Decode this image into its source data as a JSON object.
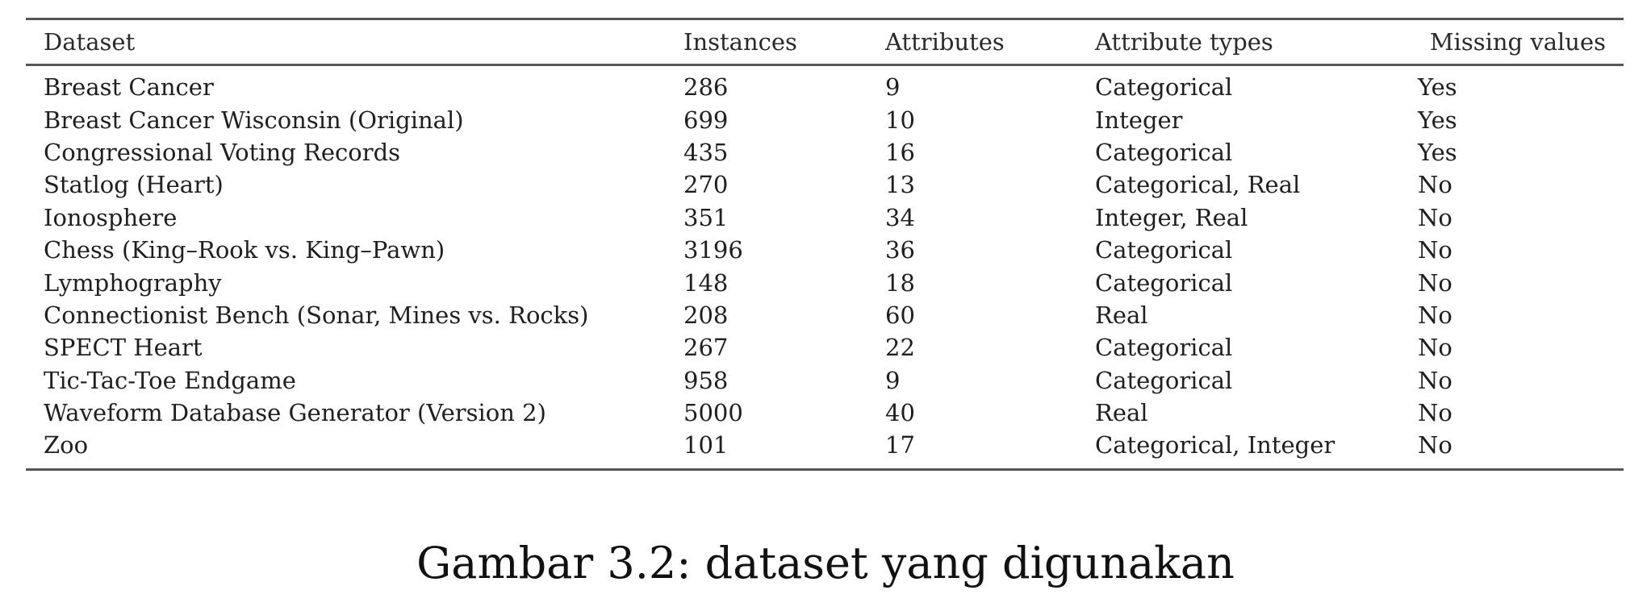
{
  "table": {
    "headers": [
      "Dataset",
      "Instances",
      "Attributes",
      "Attribute types",
      "Missing values"
    ],
    "rows": [
      [
        "Breast Cancer",
        "286",
        "9",
        "Categorical",
        "Yes"
      ],
      [
        "Breast Cancer Wisconsin (Original)",
        "699",
        "10",
        "Integer",
        "Yes"
      ],
      [
        "Congressional Voting Records",
        "435",
        "16",
        "Categorical",
        "Yes"
      ],
      [
        "Statlog (Heart)",
        "270",
        "13",
        "Categorical, Real",
        "No"
      ],
      [
        "Ionosphere",
        "351",
        "34",
        "Integer, Real",
        "No"
      ],
      [
        "Chess (King–Rook vs. King–Pawn)",
        "3196",
        "36",
        "Categorical",
        "No"
      ],
      [
        "Lymphography",
        "148",
        "18",
        "Categorical",
        "No"
      ],
      [
        "Connectionist Bench (Sonar, Mines vs. Rocks)",
        "208",
        "60",
        "Real",
        "No"
      ],
      [
        "SPECT Heart",
        "267",
        "22",
        "Categorical",
        "No"
      ],
      [
        "Tic-Tac-Toe Endgame",
        "958",
        "9",
        "Categorical",
        "No"
      ],
      [
        "Waveform Database Generator (Version 2)",
        "5000",
        "40",
        "Real",
        "No"
      ],
      [
        "Zoo",
        "101",
        "17",
        "Categorical, Integer",
        "No"
      ]
    ]
  },
  "caption": "Gambar 3.2: dataset yang digunakan"
}
